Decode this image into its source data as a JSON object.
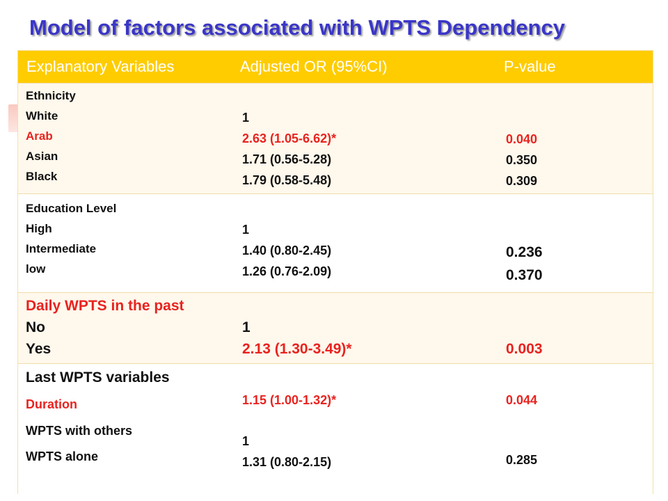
{
  "title": "Model of factors associated with WPTS Dependency",
  "table": {
    "headers": [
      "Explanatory Variables",
      "Adjusted  OR (95%CI)",
      "P-value"
    ],
    "ethnicity": {
      "group": "Ethnicity",
      "labels": [
        "White",
        "Arab",
        "Asian",
        "Black"
      ],
      "or": [
        "1",
        "2.63 (1.05-6.62)*",
        "1.71 (0.56-5.28)",
        "1.79 (0.58-5.48)"
      ],
      "p": [
        "0.040",
        "0.350",
        "0.309"
      ]
    },
    "education": {
      "group": "Education Level",
      "labels": [
        "High",
        "Intermediate",
        "low"
      ],
      "or": [
        "1",
        "1.40 (0.80-2.45)",
        "1.26  (0.76-2.09)"
      ],
      "p": [
        "0.236",
        "0.370"
      ]
    },
    "daily": {
      "group": "Daily WPTS in the past",
      "labels": [
        "No",
        "Yes"
      ],
      "or": [
        "1",
        "2.13 (1.30-3.49)*"
      ],
      "p": [
        "0.003"
      ]
    },
    "last": {
      "group": "Last WPTS variables",
      "labels": [
        "Duration",
        "WPTS with others",
        "WPTS alone"
      ],
      "or": [
        "1.15 (1.00-1.32)*",
        "1",
        "1.31 (0.80-2.15)"
      ],
      "p": [
        "0.044",
        "0.285"
      ]
    }
  },
  "colors": {
    "title": "#3a36c8",
    "header_bg": "#ffcc00",
    "highlight": "#e8231f",
    "row_shade": "#fff8ec"
  }
}
